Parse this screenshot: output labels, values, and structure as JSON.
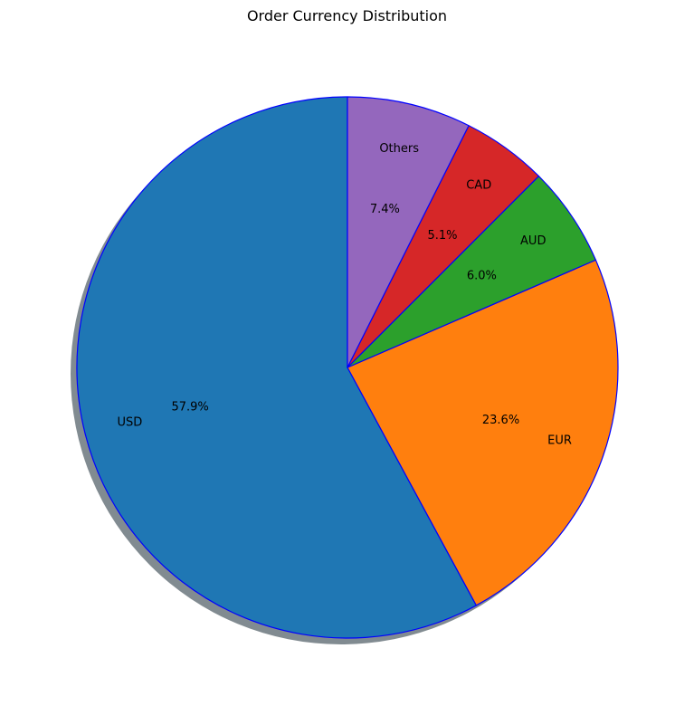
{
  "chart_data": {
    "type": "pie",
    "title": "Order Currency Distribution",
    "categories": [
      "USD",
      "EUR",
      "AUD",
      "CAD",
      "Others"
    ],
    "values": [
      57.9,
      23.6,
      6.0,
      5.1,
      7.4
    ],
    "pct_labels": [
      "57.9%",
      "23.6%",
      "6.0%",
      "5.1%",
      "7.4%"
    ],
    "colors": [
      "#1f77b4",
      "#ff7f0e",
      "#2ca02c",
      "#d62728",
      "#9467bd"
    ],
    "edge_color": "#0000ff",
    "start_angle_deg": 90,
    "direction": "counterclockwise-from-top-going-via-left",
    "shadow": true,
    "legend": "none"
  }
}
